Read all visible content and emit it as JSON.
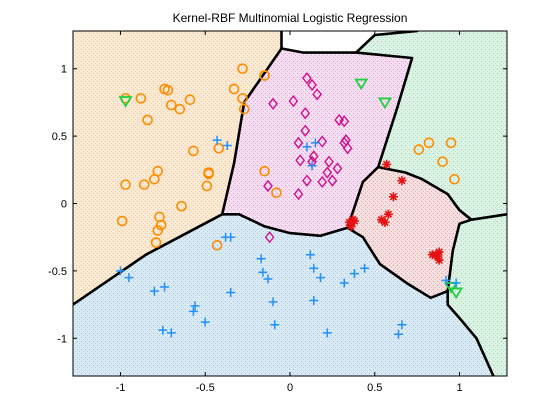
{
  "chart_data": {
    "type": "scatter",
    "title": "Kernel-RBF Multinomial Logistic Regression",
    "xlabel": "",
    "ylabel": "",
    "xlim": [
      -1.28,
      1.28
    ],
    "ylim": [
      -1.28,
      1.28
    ],
    "grid": false,
    "legend": "none",
    "x_ticks": [
      -1,
      -0.5,
      0,
      0.5,
      1
    ],
    "x_tick_labels": [
      "-1",
      "-0.5",
      "0",
      "0.5",
      "1"
    ],
    "y_ticks": [
      1,
      0.5,
      0,
      -0.5,
      -1
    ],
    "y_tick_labels": [
      "1",
      "0.5",
      "0",
      "-0.5",
      "-1"
    ],
    "regions": [
      {
        "class": "orange_circle",
        "color": "#f8ead6",
        "dot_color": "#ff9d2f",
        "polygon": [
          [
            -1.28,
            1.28
          ],
          [
            -0.05,
            1.28
          ],
          [
            -0.05,
            1.15
          ],
          [
            -0.27,
            0.75
          ],
          [
            -0.33,
            0.3
          ],
          [
            -0.4,
            -0.08
          ],
          [
            -0.85,
            -0.38
          ],
          [
            -1.28,
            -0.75
          ]
        ]
      },
      {
        "class": "magenta_diamond",
        "color": "#f4e0f0",
        "dot_color": "#d040b0",
        "polygon": [
          [
            -0.05,
            1.15
          ],
          [
            0.08,
            1.12
          ],
          [
            0.39,
            1.12
          ],
          [
            0.72,
            1.08
          ],
          [
            0.63,
            0.7
          ],
          [
            0.52,
            0.27
          ],
          [
            0.43,
            0.16
          ],
          [
            0.34,
            -0.18
          ],
          [
            0.18,
            -0.24
          ],
          [
            0,
            -0.22
          ],
          [
            -0.15,
            -0.17
          ],
          [
            -0.3,
            -0.08
          ],
          [
            -0.4,
            -0.08
          ],
          [
            -0.33,
            0.3
          ],
          [
            -0.27,
            0.75
          ]
        ]
      },
      {
        "class": "red_star",
        "color": "#f4e2e2",
        "dot_color": "#e04040",
        "polygon": [
          [
            0.34,
            -0.18
          ],
          [
            0.43,
            0.16
          ],
          [
            0.52,
            0.27
          ],
          [
            0.68,
            0.23
          ],
          [
            0.78,
            0.18
          ],
          [
            0.93,
            0.07
          ],
          [
            1.0,
            -0.05
          ],
          [
            1.07,
            -0.12
          ],
          [
            1.0,
            -0.15
          ],
          [
            0.96,
            -0.35
          ],
          [
            0.93,
            -0.65
          ],
          [
            0.83,
            -0.7
          ],
          [
            0.7,
            -0.6
          ],
          [
            0.53,
            -0.45
          ],
          [
            0.43,
            -0.25
          ]
        ]
      },
      {
        "class": "green_triangle",
        "color": "#dff2e6",
        "dot_color": "#40c070",
        "polygon": [
          [
            0.39,
            1.12
          ],
          [
            0.72,
            1.08
          ],
          [
            0.63,
            0.7
          ],
          [
            0.52,
            0.27
          ],
          [
            0.68,
            0.23
          ],
          [
            0.78,
            0.18
          ],
          [
            0.93,
            0.07
          ],
          [
            1.0,
            -0.05
          ],
          [
            1.07,
            -0.12
          ],
          [
            1.0,
            -0.15
          ],
          [
            0.96,
            -0.35
          ],
          [
            0.93,
            -0.65
          ],
          [
            0.93,
            -0.75
          ],
          [
            1.0,
            -0.85
          ],
          [
            1.1,
            -1.0
          ],
          [
            1.2,
            -1.28
          ],
          [
            1.28,
            -1.28
          ],
          [
            1.28,
            1.28
          ],
          [
            0.75,
            1.28
          ],
          [
            0.5,
            1.25
          ]
        ]
      },
      {
        "class": "blue_plus",
        "color": "#dceaf4",
        "dot_color": "#4a9ad8",
        "polygon": [
          [
            -1.28,
            -0.75
          ],
          [
            -0.85,
            -0.38
          ],
          [
            -0.4,
            -0.08
          ],
          [
            -0.3,
            -0.08
          ],
          [
            -0.15,
            -0.17
          ],
          [
            0,
            -0.22
          ],
          [
            0.18,
            -0.24
          ],
          [
            0.34,
            -0.18
          ],
          [
            0.43,
            -0.25
          ],
          [
            0.53,
            -0.45
          ],
          [
            0.7,
            -0.6
          ],
          [
            0.83,
            -0.7
          ],
          [
            0.93,
            -0.65
          ],
          [
            0.93,
            -0.75
          ],
          [
            1.0,
            -0.85
          ],
          [
            1.1,
            -1.0
          ],
          [
            1.2,
            -1.28
          ],
          [
            -1.28,
            -1.28
          ]
        ]
      }
    ],
    "boundaries": [
      [
        [
          -1.28,
          -0.75
        ],
        [
          -0.85,
          -0.38
        ],
        [
          -0.4,
          -0.08
        ],
        [
          -0.3,
          -0.08
        ],
        [
          -0.15,
          -0.17
        ],
        [
          0,
          -0.22
        ],
        [
          0.18,
          -0.24
        ],
        [
          0.34,
          -0.18
        ]
      ],
      [
        [
          -0.4,
          -0.08
        ],
        [
          -0.33,
          0.3
        ],
        [
          -0.27,
          0.75
        ],
        [
          -0.05,
          1.15
        ],
        [
          0.08,
          1.12
        ],
        [
          0.39,
          1.12
        ],
        [
          0.5,
          1.25
        ],
        [
          0.75,
          1.28
        ]
      ],
      [
        [
          0.39,
          1.12
        ],
        [
          0.72,
          1.08
        ],
        [
          0.63,
          0.7
        ],
        [
          0.52,
          0.27
        ],
        [
          0.43,
          0.16
        ],
        [
          0.34,
          -0.18
        ]
      ],
      [
        [
          -0.05,
          1.15
        ],
        [
          -0.05,
          1.28
        ]
      ],
      [
        [
          0.34,
          -0.18
        ],
        [
          0.43,
          -0.25
        ],
        [
          0.53,
          -0.45
        ],
        [
          0.7,
          -0.6
        ],
        [
          0.83,
          -0.7
        ],
        [
          0.93,
          -0.65
        ]
      ],
      [
        [
          0.52,
          0.27
        ],
        [
          0.68,
          0.23
        ],
        [
          0.78,
          0.18
        ],
        [
          0.93,
          0.07
        ],
        [
          1.0,
          -0.05
        ],
        [
          1.07,
          -0.12
        ],
        [
          1.28,
          -0.08
        ]
      ],
      [
        [
          1.07,
          -0.12
        ],
        [
          1.0,
          -0.15
        ],
        [
          0.96,
          -0.35
        ],
        [
          0.93,
          -0.65
        ],
        [
          0.93,
          -0.75
        ],
        [
          1.0,
          -0.85
        ],
        [
          1.1,
          -1.0
        ],
        [
          1.2,
          -1.28
        ]
      ]
    ],
    "series": [
      {
        "marker": "circle",
        "color": "#ff8c00",
        "points": [
          [
            -0.97,
            0.78
          ],
          [
            -0.88,
            0.78
          ],
          [
            -0.84,
            0.62
          ],
          [
            -0.74,
            0.85
          ],
          [
            -0.72,
            0.84
          ],
          [
            -0.7,
            0.73
          ],
          [
            -0.65,
            0.7
          ],
          [
            -0.59,
            0.77
          ],
          [
            -0.28,
            1.0
          ],
          [
            -0.28,
            0.78
          ],
          [
            -0.27,
            0.7
          ],
          [
            -0.33,
            0.85
          ],
          [
            -0.15,
            0.95
          ],
          [
            -0.15,
            0.95
          ],
          [
            0.82,
            0.45
          ],
          [
            0.76,
            0.4
          ],
          [
            0.9,
            0.31
          ],
          [
            0.95,
            0.45
          ],
          [
            0.97,
            0.18
          ],
          [
            -0.97,
            0.14
          ],
          [
            -0.86,
            0.14
          ],
          [
            -0.8,
            0.18
          ],
          [
            -0.78,
            0.24
          ],
          [
            -0.57,
            0.39
          ],
          [
            -0.48,
            0.23
          ],
          [
            -0.48,
            0.22
          ],
          [
            -0.49,
            0.13
          ],
          [
            -0.42,
            0.41
          ],
          [
            -0.15,
            0.24
          ],
          [
            -0.08,
            0.08
          ],
          [
            -0.99,
            -0.13
          ],
          [
            -0.77,
            -0.1
          ],
          [
            -0.76,
            -0.16
          ],
          [
            -0.78,
            -0.2
          ],
          [
            -0.79,
            -0.29
          ],
          [
            -0.64,
            -0.02
          ],
          [
            -0.43,
            -0.31
          ]
        ]
      },
      {
        "marker": "diamond",
        "color": "#d01090",
        "points": [
          [
            -0.1,
            0.74
          ],
          [
            0.02,
            0.76
          ],
          [
            0.1,
            0.93
          ],
          [
            0.13,
            0.88
          ],
          [
            0.16,
            0.81
          ],
          [
            0.09,
            0.67
          ],
          [
            0.29,
            0.62
          ],
          [
            0.32,
            0.61
          ],
          [
            0.19,
            0.46
          ],
          [
            0.33,
            0.47
          ],
          [
            0.32,
            0.45
          ],
          [
            0.34,
            0.41
          ],
          [
            0.14,
            0.35
          ],
          [
            0.06,
            0.32
          ],
          [
            0.13,
            0.31
          ],
          [
            0.23,
            0.31
          ],
          [
            0.28,
            0.26
          ],
          [
            0.22,
            0.23
          ],
          [
            0.25,
            0.17
          ],
          [
            0.19,
            0.16
          ],
          [
            0.1,
            0.17
          ],
          [
            0.05,
            0.07
          ],
          [
            -0.13,
            0.13
          ],
          [
            -0.12,
            -0.25
          ],
          [
            0.09,
            0.54
          ],
          [
            0.05,
            0.45
          ]
        ]
      },
      {
        "marker": "star",
        "color": "#e81010",
        "points": [
          [
            0.57,
            0.29
          ],
          [
            0.61,
            0.05
          ],
          [
            0.66,
            0.17
          ],
          [
            0.54,
            -0.12
          ],
          [
            0.56,
            -0.14
          ],
          [
            0.58,
            -0.08
          ],
          [
            0.37,
            -0.12
          ],
          [
            0.38,
            -0.13
          ],
          [
            0.35,
            -0.14
          ],
          [
            0.86,
            -0.38
          ],
          [
            0.87,
            -0.39
          ],
          [
            0.88,
            -0.42
          ],
          [
            0.88,
            -0.36
          ],
          [
            0.84,
            -0.38
          ],
          [
            0.36,
            -0.17
          ]
        ]
      },
      {
        "marker": "triangle",
        "color": "#20d040",
        "points": [
          [
            -0.97,
            0.76
          ],
          [
            0.42,
            0.89
          ],
          [
            0.56,
            0.75
          ],
          [
            0.95,
            -0.62
          ],
          [
            0.98,
            -0.66
          ]
        ]
      },
      {
        "marker": "plus",
        "color": "#2090ff",
        "points": [
          [
            -0.43,
            0.47
          ],
          [
            -0.37,
            0.43
          ],
          [
            0.15,
            0.45
          ],
          [
            0.1,
            0.42
          ],
          [
            0.13,
            0.28
          ],
          [
            -0.38,
            -0.25
          ],
          [
            -0.35,
            -0.25
          ],
          [
            -0.17,
            -0.41
          ],
          [
            -0.16,
            -0.51
          ],
          [
            -0.13,
            -0.56
          ],
          [
            0.12,
            -0.38
          ],
          [
            0.14,
            -0.48
          ],
          [
            0.18,
            -0.55
          ],
          [
            0.32,
            -0.59
          ],
          [
            0.38,
            -0.52
          ],
          [
            0.44,
            -0.48
          ],
          [
            -1.0,
            -0.5
          ],
          [
            -0.95,
            -0.55
          ],
          [
            -0.8,
            -0.65
          ],
          [
            -0.74,
            -0.62
          ],
          [
            -0.56,
            -0.76
          ],
          [
            -0.57,
            -0.8
          ],
          [
            -0.5,
            -0.88
          ],
          [
            -0.35,
            -0.66
          ],
          [
            -0.1,
            -0.73
          ],
          [
            0.14,
            -0.72
          ],
          [
            -0.09,
            -0.9
          ],
          [
            -0.75,
            -0.94
          ],
          [
            -0.7,
            -0.96
          ],
          [
            0.22,
            -0.96
          ],
          [
            0.64,
            -0.97
          ],
          [
            0.66,
            -0.9
          ],
          [
            0.92,
            -0.57
          ],
          [
            0.98,
            -0.59
          ]
        ]
      }
    ]
  }
}
